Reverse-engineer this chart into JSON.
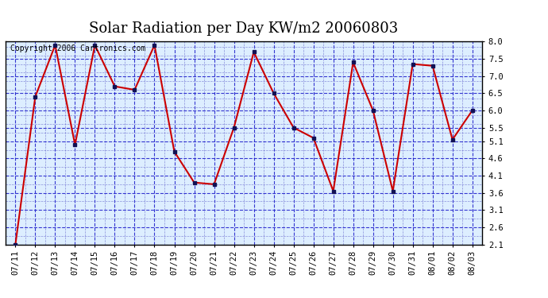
{
  "title": "Solar Radiation per Day KW/m2 20060803",
  "copyright": "Copyright 2006 Cartronics.com",
  "dates": [
    "07/11",
    "07/12",
    "07/13",
    "07/14",
    "07/15",
    "07/16",
    "07/17",
    "07/18",
    "07/19",
    "07/20",
    "07/21",
    "07/22",
    "07/23",
    "07/24",
    "07/25",
    "07/26",
    "07/27",
    "07/28",
    "07/29",
    "07/30",
    "07/31",
    "08/01",
    "08/02",
    "08/03"
  ],
  "values": [
    2.1,
    6.4,
    7.9,
    5.0,
    7.9,
    6.7,
    6.6,
    7.9,
    4.8,
    3.9,
    3.85,
    5.5,
    7.7,
    6.5,
    5.5,
    5.2,
    3.65,
    7.4,
    6.0,
    3.65,
    7.35,
    7.3,
    5.15,
    6.0
  ],
  "line_color": "#cc0000",
  "marker_color": "#111155",
  "bg_color": "#ddeeff",
  "grid_major_color": "#2222cc",
  "grid_minor_color": "#6666cc",
  "ylim": [
    2.1,
    8.0
  ],
  "yticks": [
    2.1,
    2.6,
    3.1,
    3.6,
    4.1,
    4.6,
    5.1,
    5.5,
    6.0,
    6.5,
    7.0,
    7.5,
    8.0
  ],
  "title_fontsize": 13,
  "tick_fontsize": 7.5,
  "copyright_fontsize": 7
}
